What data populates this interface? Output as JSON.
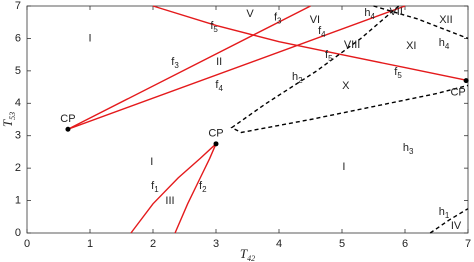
{
  "chart_data": {
    "type": "line",
    "xlabel": {
      "text": "T",
      "sub": "42"
    },
    "ylabel": {
      "text": "T",
      "sub": "53"
    },
    "xlim": [
      0,
      7
    ],
    "ylim": [
      0,
      7
    ],
    "xticks": [
      0,
      1,
      2,
      3,
      4,
      5,
      6,
      7
    ],
    "yticks": [
      0,
      1,
      2,
      3,
      4,
      5,
      6,
      7
    ],
    "series": [
      {
        "color": "#e41a1c",
        "dash": false,
        "x": [
          0.65,
          4.5
        ],
        "y": [
          3.2,
          7
        ]
      },
      {
        "color": "#e41a1c",
        "dash": false,
        "x": [
          0.65,
          6.0
        ],
        "y": [
          3.2,
          7
        ]
      },
      {
        "color": "#e41a1c",
        "dash": false,
        "x": [
          2.0,
          3,
          4,
          5,
          6,
          7
        ],
        "y": [
          7,
          6.4,
          5.9,
          5.5,
          5.1,
          4.7
        ]
      },
      {
        "color": "#e41a1c",
        "dash": false,
        "x": [
          1.65,
          2.0,
          2.4,
          2.75,
          3.0
        ],
        "y": [
          0,
          0.9,
          1.7,
          2.3,
          2.75
        ]
      },
      {
        "color": "#e41a1c",
        "dash": false,
        "x": [
          2.35,
          2.55,
          2.75,
          2.9,
          3.0
        ],
        "y": [
          0,
          0.9,
          1.7,
          2.3,
          2.75
        ]
      },
      {
        "color": "#000000",
        "dash": true,
        "x": [
          5.9,
          5.3,
          4.6,
          3.8,
          3.25,
          3.4,
          4.5,
          5.5,
          6.5,
          7.0
        ],
        "y": [
          7,
          6.0,
          5.0,
          4.0,
          3.25,
          3.1,
          3.5,
          3.9,
          4.3,
          4.55
        ]
      },
      {
        "color": "#000000",
        "dash": true,
        "x": [
          5.5,
          6.2,
          7.0
        ],
        "y": [
          7,
          6.6,
          6.0
        ]
      },
      {
        "color": "#000000",
        "dash": true,
        "x": [
          6.4,
          6.7,
          7.0
        ],
        "y": [
          0,
          0.4,
          0.75
        ]
      }
    ],
    "points": [
      {
        "label": "CP",
        "x": 0.65,
        "y": 3.2
      },
      {
        "label": "CP",
        "x": 3.0,
        "y": 2.75
      },
      {
        "label": "CP",
        "x": 6.97,
        "y": 4.7
      }
    ],
    "annotations": [
      {
        "text": "I",
        "x": 1.0,
        "y": 6.0
      },
      {
        "text": "I",
        "x": 1.98,
        "y": 2.19
      },
      {
        "text": "I",
        "x": 5.03,
        "y": 2.04
      },
      {
        "text": "II",
        "x": 3.05,
        "y": 5.28
      },
      {
        "text": "III",
        "x": 2.27,
        "y": 0.99
      },
      {
        "text": "IV",
        "x": 6.81,
        "y": 0.22
      },
      {
        "text": "V",
        "x": 3.54,
        "y": 6.76
      },
      {
        "text": "VI",
        "x": 4.57,
        "y": 6.57
      },
      {
        "text": "VII",
        "x": 5.86,
        "y": 6.82
      },
      {
        "text": "VIII",
        "x": 5.16,
        "y": 5.8
      },
      {
        "text": "X",
        "x": 5.06,
        "y": 4.54
      },
      {
        "text": "XI",
        "x": 6.1,
        "y": 5.77
      },
      {
        "text": "XII",
        "x": 6.65,
        "y": 6.57
      },
      {
        "text": "f",
        "sub": "5",
        "x": 2.97,
        "y": 6.39
      },
      {
        "text": "f",
        "sub": "3",
        "x": 3.98,
        "y": 6.64
      },
      {
        "text": "f",
        "sub": "3",
        "x": 2.35,
        "y": 5.28
      },
      {
        "text": "f",
        "sub": "4",
        "x": 3.05,
        "y": 4.57
      },
      {
        "text": "f",
        "sub": "4",
        "x": 4.68,
        "y": 6.23
      },
      {
        "text": "f",
        "sub": "5",
        "x": 4.79,
        "y": 5.49
      },
      {
        "text": "f",
        "sub": "5",
        "x": 5.89,
        "y": 4.97
      },
      {
        "text": "f",
        "sub": "1",
        "x": 2.03,
        "y": 1.45
      },
      {
        "text": "f",
        "sub": "2",
        "x": 2.79,
        "y": 1.45
      },
      {
        "text": "h",
        "sub": "4",
        "x": 5.44,
        "y": 6.79
      },
      {
        "text": "h",
        "sub": "4",
        "x": 6.62,
        "y": 5.86
      },
      {
        "text": "h",
        "sub": "2",
        "x": 4.29,
        "y": 4.81
      },
      {
        "text": "h",
        "sub": "3",
        "x": 6.05,
        "y": 2.62
      },
      {
        "text": "h",
        "sub": "1",
        "x": 6.62,
        "y": 0.65
      }
    ]
  }
}
